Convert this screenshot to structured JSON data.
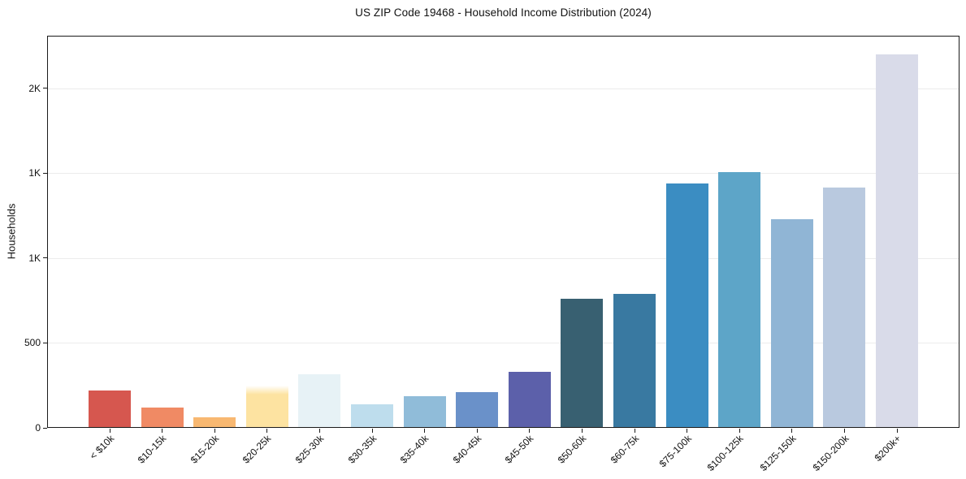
{
  "chart_data": {
    "type": "bar",
    "title": "US ZIP Code 19468 - Household Income Distribution (2024)",
    "xlabel": "",
    "ylabel": "Households",
    "ylim": [
      0,
      2310
    ],
    "grid": "horizontal",
    "gridline_color": "#ececec",
    "spine_color": "#1a1a1a",
    "background_color": "#ffffff",
    "legend": "none",
    "yticks": [
      {
        "value": 0,
        "label": "0"
      },
      {
        "value": 500,
        "label": "500"
      },
      {
        "value": 1000,
        "label": "1K"
      },
      {
        "value": 1500,
        "label": "1K"
      },
      {
        "value": 2000,
        "label": "2K"
      }
    ],
    "categories": [
      "< $10k",
      "$10-15k",
      "$15-20k",
      "$20-25k",
      "$25-30k",
      "$30-35k",
      "$35-40k",
      "$40-45k",
      "$45-50k",
      "$50-60k",
      "$60-75k",
      "$75-100k",
      "$100-125k",
      "$125-150k",
      "$150-200k",
      "$200k+"
    ],
    "values": [
      220,
      120,
      62,
      250,
      315,
      140,
      185,
      210,
      330,
      760,
      790,
      1440,
      1505,
      1230,
      1415,
      2200
    ],
    "bar_colors": [
      "#d6574f",
      "#f08a64",
      "#f8b871",
      "#fde3a1",
      "#e7f2f6",
      "#bedded",
      "#90bcd9",
      "#6a91c9",
      "#5c60aa",
      "#386071",
      "#3979a1",
      "#3b8dc2",
      "#5da5c8",
      "#90b5d5",
      "#b9c9df",
      "#d9dbe9"
    ],
    "faded_top_bars": [
      3
    ]
  }
}
